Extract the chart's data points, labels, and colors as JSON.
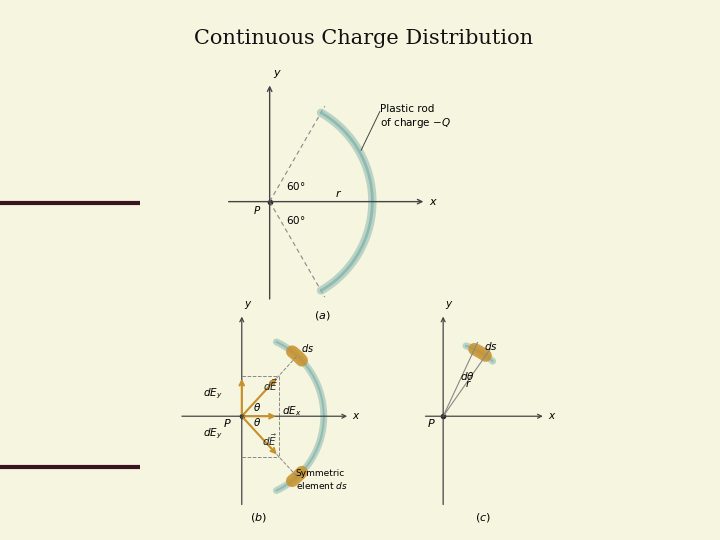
{
  "title": "Continuous Charge Distribution",
  "slide_bg": "#f5f5e0",
  "left_col_bg": "#d0ce9a",
  "white_bg": "#ffffff",
  "arc_color": "#8ab8b0",
  "arc_lw": 5,
  "dashed_color": "#888888",
  "arrow_color": "#c8902a",
  "axis_color": "#444444",
  "highlight_color": "#c8902a",
  "dot_color": "#222222",
  "title_fontsize": 15,
  "label_fontsize": 7.5
}
